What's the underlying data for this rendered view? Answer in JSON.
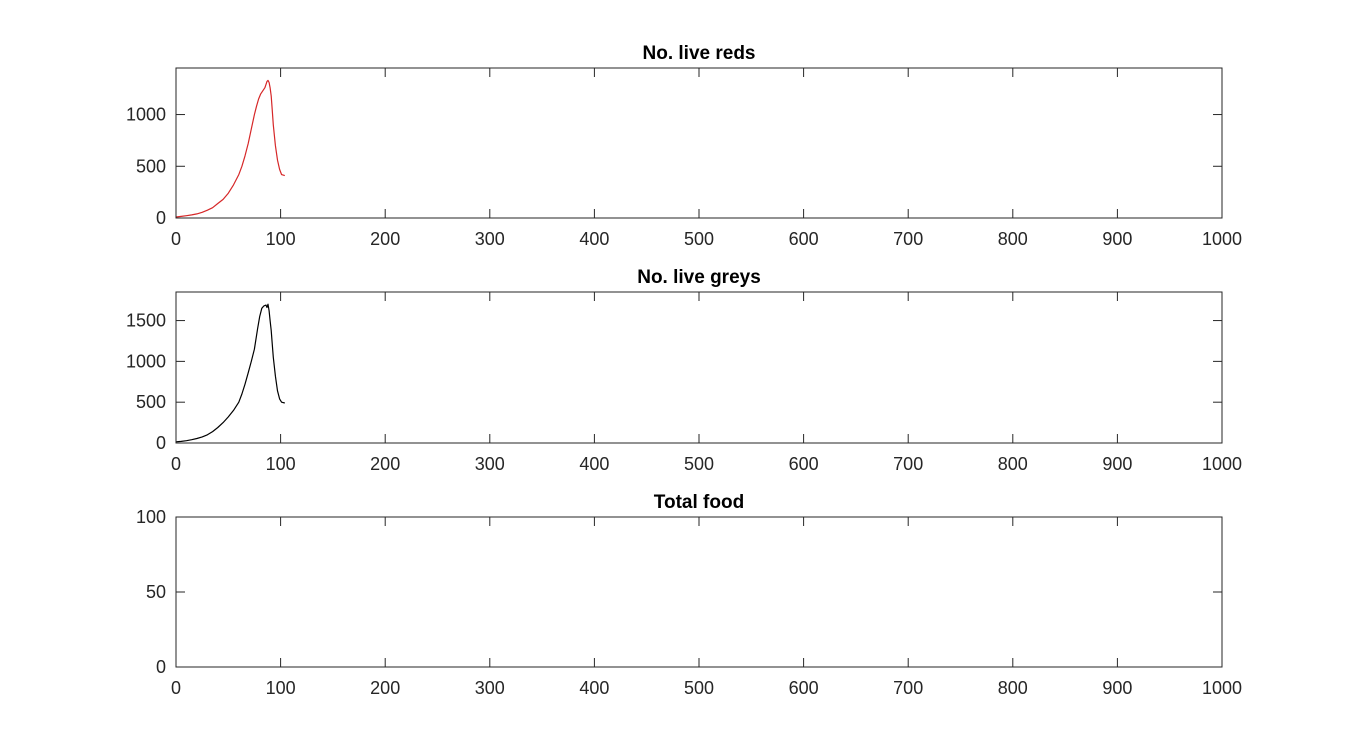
{
  "colors": {
    "background": "#ffffff",
    "axis": "#262626",
    "reds_line": "#d62728",
    "greys_line": "#000000"
  },
  "chart_data": [
    {
      "type": "line",
      "title": "No. live reds",
      "xlabel": "",
      "ylabel": "",
      "xlim": [
        0,
        1000
      ],
      "ylim": [
        0,
        1450
      ],
      "xticks": [
        0,
        100,
        200,
        300,
        400,
        500,
        600,
        700,
        800,
        900,
        1000
      ],
      "yticks": [
        0,
        500,
        1000
      ],
      "grid": false,
      "series": [
        {
          "name": "reds",
          "color": "#d62728",
          "x": [
            0,
            5,
            10,
            15,
            20,
            25,
            30,
            35,
            40,
            45,
            50,
            55,
            60,
            63,
            66,
            69,
            72,
            75,
            77,
            79,
            81,
            83,
            85,
            87,
            88,
            89,
            90,
            91,
            92,
            93,
            95,
            97,
            99,
            101,
            104
          ],
          "y": [
            10,
            15,
            22,
            30,
            40,
            55,
            75,
            100,
            140,
            180,
            240,
            320,
            420,
            500,
            600,
            720,
            860,
            1000,
            1080,
            1150,
            1200,
            1230,
            1260,
            1320,
            1330,
            1310,
            1260,
            1180,
            1050,
            900,
            700,
            560,
            470,
            420,
            410
          ]
        }
      ]
    },
    {
      "type": "line",
      "title": "No. live greys",
      "xlabel": "",
      "ylabel": "",
      "xlim": [
        0,
        1000
      ],
      "ylim": [
        0,
        1850
      ],
      "xticks": [
        0,
        100,
        200,
        300,
        400,
        500,
        600,
        700,
        800,
        900,
        1000
      ],
      "yticks": [
        0,
        500,
        1000,
        1500
      ],
      "grid": false,
      "series": [
        {
          "name": "greys",
          "color": "#000000",
          "x": [
            0,
            5,
            10,
            15,
            20,
            25,
            30,
            35,
            40,
            45,
            50,
            55,
            60,
            63,
            66,
            69,
            72,
            75,
            78,
            80,
            82,
            84,
            86,
            87,
            88,
            89,
            90,
            91,
            92,
            93,
            95,
            97,
            99,
            101,
            104
          ],
          "y": [
            15,
            20,
            28,
            40,
            55,
            75,
            100,
            140,
            190,
            250,
            320,
            400,
            500,
            600,
            720,
            860,
            1000,
            1150,
            1400,
            1550,
            1650,
            1680,
            1690,
            1660,
            1700,
            1620,
            1500,
            1380,
            1220,
            1050,
            820,
            640,
            540,
            500,
            490
          ]
        }
      ]
    },
    {
      "type": "line",
      "title": "Total food",
      "xlabel": "",
      "ylabel": "",
      "xlim": [
        0,
        1000
      ],
      "ylim": [
        0,
        100
      ],
      "xticks": [
        0,
        100,
        200,
        300,
        400,
        500,
        600,
        700,
        800,
        900,
        1000
      ],
      "yticks": [
        0,
        50,
        100
      ],
      "grid": false,
      "series": []
    }
  ]
}
